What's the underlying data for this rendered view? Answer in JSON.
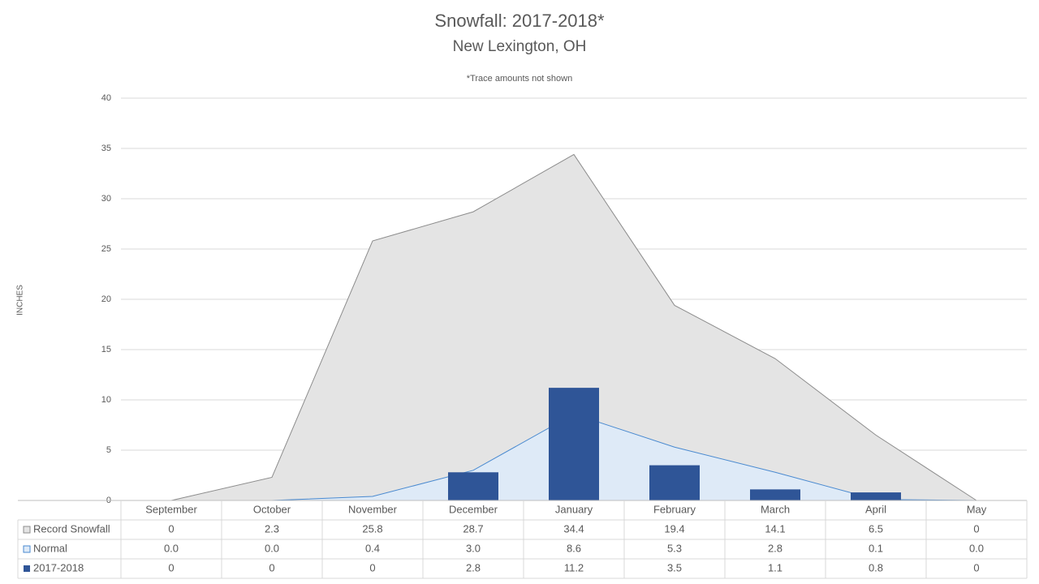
{
  "chart_data": {
    "type": "combo",
    "title": "Snowfall: 2017-2018*",
    "subtitle": "New Lexington, OH",
    "note": "*Trace amounts not shown",
    "y_label": "INCHES",
    "categories": [
      "September",
      "October",
      "November",
      "December",
      "January",
      "February",
      "March",
      "April",
      "May"
    ],
    "ylim": [
      0,
      40
    ],
    "yticks": [
      0,
      5,
      10,
      15,
      20,
      25,
      30,
      35,
      40
    ],
    "grid": true,
    "series": [
      {
        "name": "Record Snowfall",
        "type": "area",
        "color": "#e4e4e4",
        "line_color": "#8c8c8c",
        "values": [
          0,
          2.3,
          25.8,
          28.7,
          34.4,
          19.4,
          14.1,
          6.5,
          0
        ]
      },
      {
        "name": "Normal",
        "type": "area",
        "color": "#deeaf7",
        "line_color": "#4a8ad0",
        "values": [
          0,
          0,
          0.4,
          3,
          8.6,
          5.3,
          2.8,
          0.1,
          0
        ],
        "value_labels": [
          "0.0",
          "0.0",
          "0.4",
          "3.0",
          "8.6",
          "5.3",
          "2.8",
          "0.1",
          "0.0"
        ]
      },
      {
        "name": "2017-2018",
        "type": "bar",
        "color": "#2f5597",
        "values": [
          0,
          0,
          0,
          2.8,
          11.2,
          3.5,
          1.1,
          0.8,
          0
        ]
      }
    ]
  }
}
